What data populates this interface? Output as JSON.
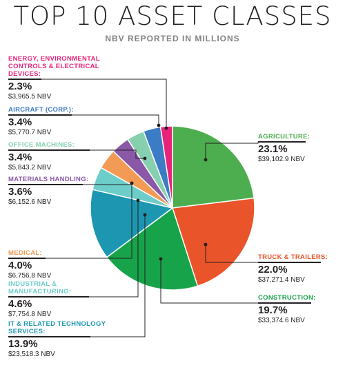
{
  "page": {
    "title": "TOP 10 ASSET CLASSES",
    "subtitle": "NBV REPORTED IN MILLIONS"
  },
  "chart_data": {
    "type": "pie",
    "title": "TOP 10 ASSET CLASSES",
    "subtitle": "NBV REPORTED IN MILLIONS",
    "slices": [
      {
        "name": "AGRICULTURE:",
        "percent": "23.1%",
        "value": 39102.9,
        "nbv": "$39,102.9 NBV",
        "color": "#4cae4e"
      },
      {
        "name": "TRUCK & TRAILERS:",
        "percent": "22.0%",
        "value": 37271.4,
        "nbv": "$37,271.4 NBV",
        "color": "#e9542a"
      },
      {
        "name": "CONSTRUCTION:",
        "percent": "19.7%",
        "value": 33374.6,
        "nbv": "$33,374.6 NBV",
        "color": "#17a34a"
      },
      {
        "name": "IT & RELATED TECHNOLOGY SERVICES:",
        "percent": "13.9%",
        "value": 23518.3,
        "nbv": "$23,518.3 NBV",
        "color": "#1d97b1"
      },
      {
        "name": "INDUSTRIAL & MANUFACTURING:",
        "percent": "4.6%",
        "value": 7754.8,
        "nbv": "$7,754.8 NBV",
        "color": "#6ccdc9"
      },
      {
        "name": "MEDICAL:",
        "percent": "4.0%",
        "value": 6756.8,
        "nbv": "$6,756.8 NBV",
        "color": "#f39a55"
      },
      {
        "name": "MATERIALS HANDLING:",
        "percent": "3.6%",
        "value": 6152.6,
        "nbv": "$6,152.6 NBV",
        "color": "#8a58a7"
      },
      {
        "name": "OFFICE MACHINES:",
        "percent": "3.4%",
        "value": 5843.2,
        "nbv": "$5,843.2 NBV",
        "color": "#86d0b0"
      },
      {
        "name": "AIRCRAFT (CORP.):",
        "percent": "3.4%",
        "value": 5770.7,
        "nbv": "$5,770.7 NBV",
        "color": "#3b7cc4"
      },
      {
        "name": "ENERGY, ENVIRONMENTAL CONTROLS & ELECTRICAL DEVICES:",
        "percent": "2.3%",
        "value": 3965.5,
        "nbv": "$3,965.5 NBV",
        "color": "#e8237a"
      }
    ],
    "legend": "callout labels around pie"
  }
}
